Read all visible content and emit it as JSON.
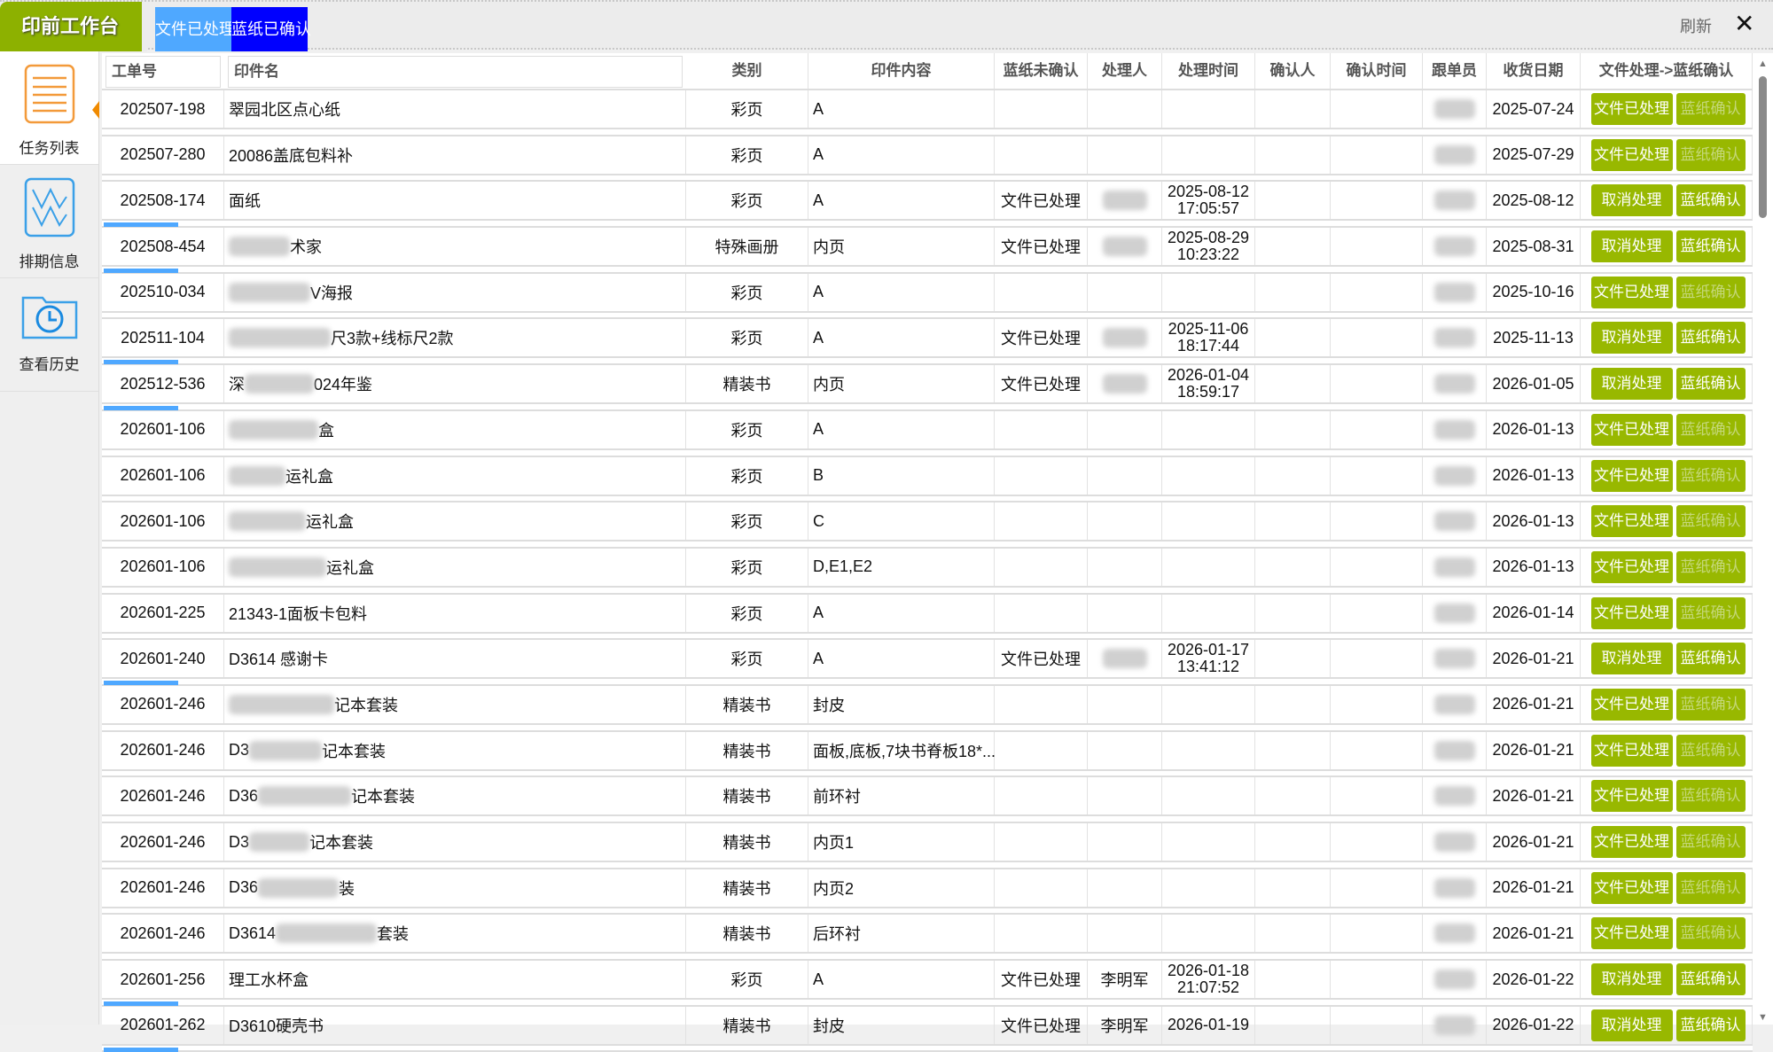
{
  "app": {
    "title": "印前工作台",
    "tabs": [
      "文件已处理",
      "蓝纸已确认"
    ],
    "refresh": "刷新",
    "close": "✕"
  },
  "colors": {
    "accent_green": "#98b800",
    "tab_processed": "#4fa8ff",
    "tab_confirmed": "#0000ff",
    "progress": "#4fa8ff",
    "sidebar_active": "#f08a00"
  },
  "sidebar": {
    "items": [
      {
        "label": "任务列表",
        "icon": "task-list-icon",
        "active": true
      },
      {
        "label": "排期信息",
        "icon": "schedule-chart-icon"
      },
      {
        "label": "查看历史",
        "icon": "history-folder-icon"
      }
    ]
  },
  "table": {
    "columns": [
      "工单号",
      "印件名",
      "类别",
      "印件内容",
      "蓝纸未确认",
      "处理人",
      "处理时间",
      "确认人",
      "确认时间",
      "跟单员",
      "收货日期",
      "文件处理->蓝纸确认"
    ],
    "buttons": {
      "process": "文件已处理",
      "cancel": "取消处理",
      "confirm": "蓝纸确认"
    },
    "rows": [
      {
        "id": "202507-198",
        "name_pre": "翠园北区点心纸",
        "name_post": "",
        "blur": false,
        "type": "彩页",
        "content": "A",
        "status": "",
        "handler": "",
        "time1": "",
        "time2": "",
        "date": "2025-07-24",
        "processed": false
      },
      {
        "id": "202507-280",
        "name_pre": "20086盖底包料补",
        "name_post": "",
        "blur": false,
        "type": "彩页",
        "content": "A",
        "status": "",
        "handler": "",
        "time1": "",
        "time2": "",
        "date": "2025-07-29",
        "processed": false
      },
      {
        "id": "202508-174",
        "name_pre": "面纸",
        "name_post": "",
        "blur": false,
        "type": "彩页",
        "content": "A",
        "status": "文件已处理",
        "handler": "",
        "time1": "2025-08-12",
        "time2": "17:05:57",
        "date": "2025-08-12",
        "processed": true
      },
      {
        "id": "202508-454",
        "name_pre": "",
        "name_post": "术家",
        "blur": true,
        "type": "特殊画册",
        "content": "内页",
        "status": "文件已处理",
        "handler": "",
        "time1": "2025-08-29",
        "time2": "10:23:22",
        "date": "2025-08-31",
        "processed": true
      },
      {
        "id": "202510-034",
        "name_pre": "",
        "name_post": "V海报",
        "blur": true,
        "type": "彩页",
        "content": "A",
        "status": "",
        "handler": "",
        "time1": "",
        "time2": "",
        "date": "2025-10-16",
        "processed": false
      },
      {
        "id": "202511-104",
        "name_pre": "",
        "name_post": "尺3款+线标尺2款",
        "blur": true,
        "type": "彩页",
        "content": "A",
        "status": "文件已处理",
        "handler": "",
        "time1": "2025-11-06",
        "time2": "18:17:44",
        "date": "2025-11-13",
        "processed": true
      },
      {
        "id": "202512-536",
        "name_pre": "深",
        "name_post": "024年鉴",
        "blur": true,
        "type": "精装书",
        "content": "内页",
        "status": "文件已处理",
        "handler": "",
        "time1": "2026-01-04",
        "time2": "18:59:17",
        "date": "2026-01-05",
        "processed": true
      },
      {
        "id": "202601-106",
        "name_pre": "",
        "name_post": "盒",
        "blur": true,
        "type": "彩页",
        "content": "A",
        "status": "",
        "handler": "",
        "time1": "",
        "time2": "",
        "date": "2026-01-13",
        "processed": false
      },
      {
        "id": "202601-106",
        "name_pre": "",
        "name_post": "运礼盒",
        "blur": true,
        "type": "彩页",
        "content": "B",
        "status": "",
        "handler": "",
        "time1": "",
        "time2": "",
        "date": "2026-01-13",
        "processed": false
      },
      {
        "id": "202601-106",
        "name_pre": "",
        "name_post": "运礼盒",
        "blur": true,
        "type": "彩页",
        "content": "C",
        "status": "",
        "handler": "",
        "time1": "",
        "time2": "",
        "date": "2026-01-13",
        "processed": false
      },
      {
        "id": "202601-106",
        "name_pre": "",
        "name_post": "运礼盒",
        "blur": true,
        "type": "彩页",
        "content": "D,E1,E2",
        "status": "",
        "handler": "",
        "time1": "",
        "time2": "",
        "date": "2026-01-13",
        "processed": false
      },
      {
        "id": "202601-225",
        "name_pre": "21343-1面板卡包料",
        "name_post": "",
        "blur": false,
        "type": "彩页",
        "content": "A",
        "status": "",
        "handler": "",
        "time1": "",
        "time2": "",
        "date": "2026-01-14",
        "processed": false
      },
      {
        "id": "202601-240",
        "name_pre": "D3614 感谢卡",
        "name_post": "",
        "blur": false,
        "type": "彩页",
        "content": "A",
        "status": "文件已处理",
        "handler": "",
        "time1": "2026-01-17",
        "time2": "13:41:12",
        "date": "2026-01-21",
        "processed": true
      },
      {
        "id": "202601-246",
        "name_pre": "",
        "name_post": "记本套装",
        "blur": true,
        "type": "精装书",
        "content": "封皮",
        "status": "",
        "handler": "",
        "time1": "",
        "time2": "",
        "date": "2026-01-21",
        "processed": false
      },
      {
        "id": "202601-246",
        "name_pre": "D3",
        "name_post": "记本套装",
        "blur": true,
        "type": "精装书",
        "content": "面板,底板,7块书脊板18*...",
        "status": "",
        "handler": "",
        "time1": "",
        "time2": "",
        "date": "2026-01-21",
        "processed": false
      },
      {
        "id": "202601-246",
        "name_pre": "D36",
        "name_post": "记本套装",
        "blur": true,
        "type": "精装书",
        "content": "前环衬",
        "status": "",
        "handler": "",
        "time1": "",
        "time2": "",
        "date": "2026-01-21",
        "processed": false
      },
      {
        "id": "202601-246",
        "name_pre": "D3",
        "name_post": "记本套装",
        "blur": true,
        "type": "精装书",
        "content": "内页1",
        "status": "",
        "handler": "",
        "time1": "",
        "time2": "",
        "date": "2026-01-21",
        "processed": false
      },
      {
        "id": "202601-246",
        "name_pre": "D36",
        "name_post": "装",
        "blur": true,
        "type": "精装书",
        "content": "内页2",
        "status": "",
        "handler": "",
        "time1": "",
        "time2": "",
        "date": "2026-01-21",
        "processed": false
      },
      {
        "id": "202601-246",
        "name_pre": "D3614",
        "name_post": "套装",
        "blur": true,
        "type": "精装书",
        "content": "后环衬",
        "status": "",
        "handler": "",
        "time1": "",
        "time2": "",
        "date": "2026-01-21",
        "processed": false
      },
      {
        "id": "202601-256",
        "name_pre": "理工水杯盒",
        "name_post": "",
        "blur": false,
        "type": "彩页",
        "content": "A",
        "status": "文件已处理",
        "handler": "李明军",
        "time1": "2026-01-18",
        "time2": "21:07:52",
        "date": "2026-01-22",
        "processed": true
      },
      {
        "id": "202601-262",
        "name_pre": "D3610硬壳书",
        "name_post": "",
        "blur": false,
        "type": "精装书",
        "content": "封皮",
        "status": "文件已处理",
        "handler": "李明军",
        "time1": "2026-01-19",
        "time2": "",
        "date": "2026-01-22",
        "processed": true
      }
    ]
  }
}
